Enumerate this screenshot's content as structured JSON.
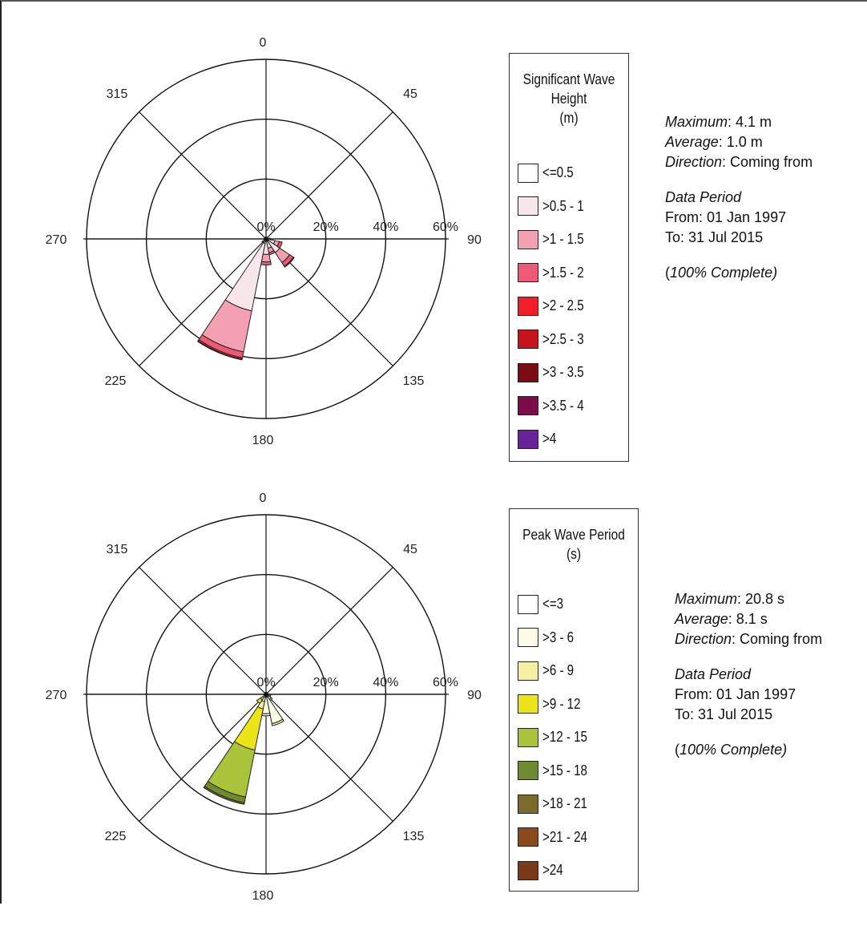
{
  "chart_data": [
    {
      "type": "rose",
      "title": "Significant Wave Height",
      "direction_labels": [
        "0",
        "45",
        "90",
        "135",
        "180",
        "225",
        "270",
        "315"
      ],
      "radial_labels": [
        "0%",
        "20%",
        "40%",
        "60%"
      ],
      "rlim": [
        0,
        60
      ],
      "sector_width_deg": 22.5,
      "legend": {
        "title_lines": [
          "Significant Wave",
          "Height",
          "(m)"
        ],
        "items": [
          {
            "label": "<=0.5",
            "color": "#ffffff"
          },
          {
            "label": ">0.5 - 1",
            "color": "#f7e6ea"
          },
          {
            "label": ">1 - 1.5",
            "color": "#f3a0b2"
          },
          {
            "label": ">1.5 - 2",
            "color": "#ec5a78"
          },
          {
            "label": ">2 - 2.5",
            "color": "#f21e2a"
          },
          {
            "label": ">2.5 - 3",
            "color": "#c8141e"
          },
          {
            "label": ">3 - 3.5",
            "color": "#7a0a14"
          },
          {
            "label": ">3.5 - 4",
            "color": "#7c0d4a"
          },
          {
            "label": ">4",
            "color": "#6a229a"
          }
        ]
      },
      "sectors": [
        {
          "direction": 90,
          "values": [
            0.3,
            0.6,
            0.3,
            0.2,
            0,
            0,
            0,
            0,
            0
          ]
        },
        {
          "direction": 112.5,
          "values": [
            0.5,
            2.5,
            1.5,
            1.0,
            0,
            0,
            0,
            0,
            0
          ]
        },
        {
          "direction": 135,
          "values": [
            1.0,
            4.5,
            4.0,
            1.5,
            0.3,
            0,
            0,
            0,
            0
          ]
        },
        {
          "direction": 157.5,
          "values": [
            0.7,
            2.5,
            1.5,
            0.7,
            0,
            0,
            0,
            0,
            0
          ]
        },
        {
          "direction": 180,
          "values": [
            0.7,
            4.5,
            2.5,
            1.0,
            0,
            0,
            0,
            0,
            0
          ]
        },
        {
          "direction": 202.5,
          "values": [
            1.5,
            23.0,
            14.0,
            2.0,
            0.5,
            0.2,
            0,
            0,
            0
          ]
        },
        {
          "direction": 225,
          "values": [
            0.3,
            1.0,
            0.3,
            0,
            0,
            0,
            0,
            0,
            0
          ]
        }
      ],
      "stats": {
        "maximum_label": "Maximum",
        "maximum_value": ": 4.1 m",
        "average_label": "Average",
        "average_value": ": 1.0 m",
        "direction_label": "Direction",
        "direction_value": ": Coming from",
        "period_heading": "Data Period",
        "from": "From: 01 Jan 1997",
        "to": "To: 31 Jul 2015",
        "complete_open": "(",
        "complete_text": "100% Complete)"
      }
    },
    {
      "type": "rose",
      "title": "Peak Wave Period",
      "direction_labels": [
        "0",
        "45",
        "90",
        "135",
        "180",
        "225",
        "270",
        "315"
      ],
      "radial_labels": [
        "0%",
        "20%",
        "40%",
        "60%"
      ],
      "rlim": [
        0,
        60
      ],
      "sector_width_deg": 22.5,
      "legend": {
        "title_lines": [
          "Peak Wave Period",
          "(s)"
        ],
        "items": [
          {
            "label": "<=3",
            "color": "#ffffff"
          },
          {
            "label": ">3 - 6",
            "color": "#fbfbe6"
          },
          {
            "label": ">6 - 9",
            "color": "#f6f0a4"
          },
          {
            "label": ">9 - 12",
            "color": "#ebe418"
          },
          {
            "label": ">12 - 15",
            "color": "#a9c43a"
          },
          {
            "label": ">15 - 18",
            "color": "#6f8a30"
          },
          {
            "label": ">18 - 21",
            "color": "#7a6a2c"
          },
          {
            "label": ">21 - 24",
            "color": "#8a4a1c"
          },
          {
            "label": ">24",
            "color": "#7a3a1a"
          }
        ]
      },
      "sectors": [
        {
          "direction": 90,
          "values": [
            0.2,
            0.3,
            0.2,
            0,
            0,
            0,
            0,
            0,
            0
          ]
        },
        {
          "direction": 112.5,
          "values": [
            0.3,
            0.8,
            0.5,
            0,
            0,
            0,
            0,
            0,
            0
          ]
        },
        {
          "direction": 135,
          "values": [
            0.5,
            1.5,
            0.5,
            0,
            0,
            0,
            0,
            0,
            0
          ]
        },
        {
          "direction": 157.5,
          "values": [
            1.0,
            9.0,
            0.7,
            0,
            0,
            0,
            0,
            0,
            0
          ]
        },
        {
          "direction": 180,
          "values": [
            1.0,
            5.5,
            0.7,
            0,
            0,
            0,
            0,
            0,
            0
          ]
        },
        {
          "direction": 202.5,
          "values": [
            0.5,
            2.0,
            2.5,
            14.0,
            16.0,
            2.0,
            0.5,
            0,
            0
          ]
        },
        {
          "direction": 225,
          "values": [
            0.2,
            1.0,
            1.0,
            1.5,
            0,
            0,
            0,
            0,
            0
          ]
        }
      ],
      "stats": {
        "maximum_label": "Maximum",
        "maximum_value": ": 20.8 s",
        "average_label": "Average",
        "average_value": ": 8.1 s",
        "direction_label": "Direction",
        "direction_value": ": Coming from",
        "period_heading": "Data Period",
        "from": "From: 01 Jan 1997",
        "to": "To: 31 Jul 2015",
        "complete_open": "(",
        "complete_text": "100% Complete)"
      }
    }
  ]
}
